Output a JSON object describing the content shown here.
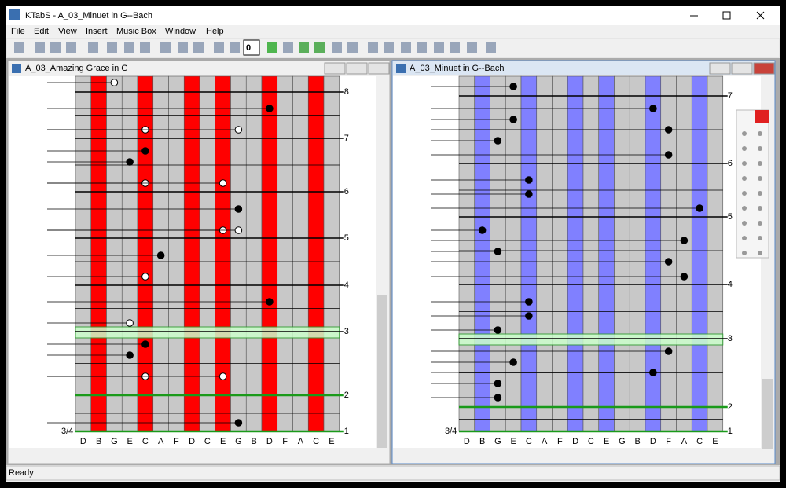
{
  "window_title": "KTabS - A_03_Minuet in G--Bach",
  "menu": [
    "File",
    "Edit",
    "View",
    "Insert",
    "Music Box",
    "Window",
    "Help"
  ],
  "toolbar_counter": "0",
  "documents": [
    {
      "title": "A_03_Amazing Grace in G",
      "time_signature": "3/4",
      "measures": [
        "8",
        "7",
        "6",
        "5",
        "4",
        "3",
        "2",
        "1"
      ],
      "tines": [
        "D",
        "B",
        "G",
        "E",
        "C",
        "A",
        "F",
        "D",
        "C",
        "E",
        "G",
        "B",
        "D",
        "F",
        "A",
        "C",
        "E"
      ]
    },
    {
      "title": "A_03_Minuet in G--Bach",
      "time_signature": "3/4",
      "measures": [
        "7",
        "6",
        "5",
        "4",
        "3",
        "2",
        "1"
      ],
      "tines": [
        "D",
        "B",
        "G",
        "E",
        "C",
        "A",
        "F",
        "D",
        "C",
        "E",
        "G",
        "B",
        "D",
        "F",
        "A",
        "C",
        "E"
      ]
    }
  ],
  "status": "Ready"
}
